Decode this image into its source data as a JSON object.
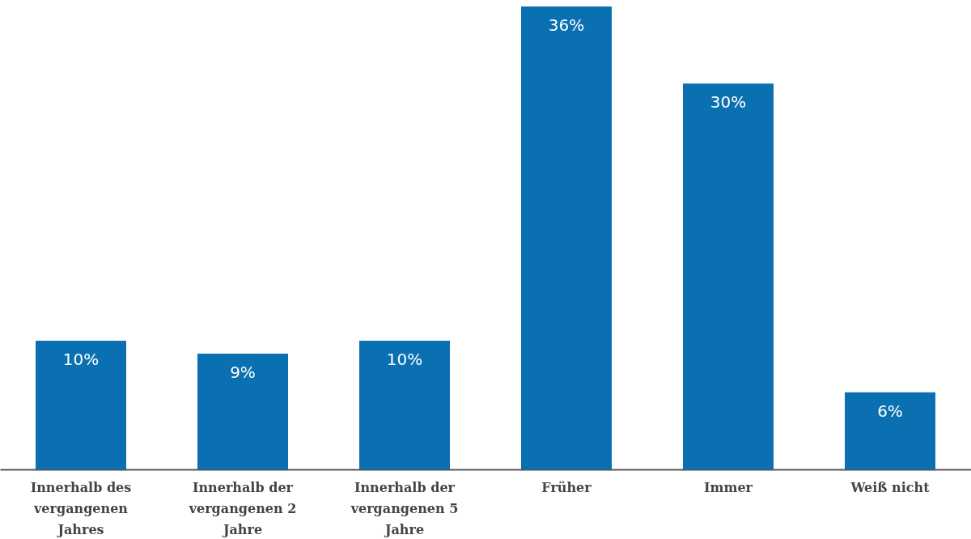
{
  "chart_data": {
    "type": "bar",
    "categories": [
      "Innerhalb des vergangenen Jahres",
      "Innerhalb der vergangenen 2 Jahre",
      "Innerhalb der vergangenen 5 Jahre",
      "Früher",
      "Immer",
      "Weiß nicht"
    ],
    "values": [
      10,
      9,
      10,
      36,
      30,
      6
    ],
    "value_labels": [
      "10%",
      "9%",
      "10%",
      "36%",
      "30%",
      "6%"
    ],
    "color": "#0b70b2"
  }
}
